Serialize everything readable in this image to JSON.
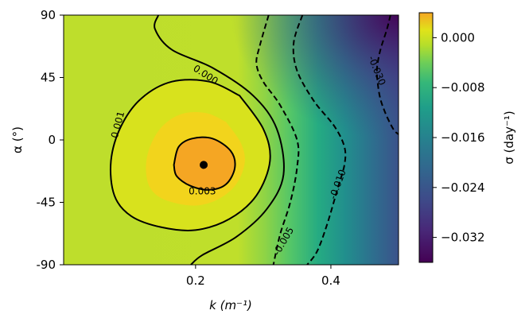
{
  "chart_data": {
    "type": "heatmap",
    "subtype": "filled-contour",
    "xlabel": "k (m⁻¹)",
    "ylabel": "α (°)",
    "x_ticks": [
      {
        "value": 0.2,
        "label": "0.2"
      },
      {
        "value": 0.4,
        "label": "0.4"
      }
    ],
    "y_ticks": [
      {
        "value": 90,
        "label": "90"
      },
      {
        "value": 45,
        "label": "45"
      },
      {
        "value": 0,
        "label": "0"
      },
      {
        "value": -45,
        "label": "-45"
      },
      {
        "value": -90,
        "label": "-90"
      }
    ],
    "xlim": [
      0.005,
      0.5
    ],
    "ylim": [
      -90,
      90
    ],
    "grid": false,
    "colormap": "viridis",
    "colorbar": {
      "label": "σ (day⁻¹)",
      "range": [
        -0.036,
        0.004
      ],
      "ticks": [
        {
          "value": 0.0,
          "label": "0.000"
        },
        {
          "value": -0.008,
          "label": "−0.008"
        },
        {
          "value": -0.016,
          "label": "−0.016"
        },
        {
          "value": -0.024,
          "label": "−0.024"
        },
        {
          "value": -0.032,
          "label": "−0.032"
        }
      ]
    },
    "maximum_point": {
      "x": 0.212,
      "y": -18
    },
    "contours": [
      {
        "level": 0.003,
        "label": "0.003",
        "style": "solid",
        "label_at": [
          0.21,
          -37
        ],
        "points": [
          [
            0.168,
            -18
          ],
          [
            0.175,
            -5
          ],
          [
            0.195,
            1
          ],
          [
            0.225,
            1
          ],
          [
            0.252,
            -8
          ],
          [
            0.258,
            -20
          ],
          [
            0.245,
            -32
          ],
          [
            0.22,
            -36
          ],
          [
            0.192,
            -33
          ],
          [
            0.172,
            -26
          ],
          [
            0.168,
            -18
          ]
        ]
      },
      {
        "level": 0.001,
        "label": "0.001",
        "style": "solid",
        "label_at": [
          0.085,
          11
        ],
        "points": [
          [
            0.265,
            32
          ],
          [
            0.22,
            42
          ],
          [
            0.165,
            42
          ],
          [
            0.12,
            30
          ],
          [
            0.09,
            10
          ],
          [
            0.075,
            -15
          ],
          [
            0.08,
            -40
          ],
          [
            0.105,
            -55
          ],
          [
            0.15,
            -63
          ],
          [
            0.2,
            -65
          ],
          [
            0.25,
            -57
          ],
          [
            0.29,
            -40
          ],
          [
            0.31,
            -15
          ],
          [
            0.3,
            8
          ],
          [
            0.265,
            32
          ]
        ]
      },
      {
        "level": 0.0,
        "label": "0.000",
        "style": "solid",
        "label_at": [
          0.215,
          47
        ],
        "points": [
          [
            0.145,
            90
          ],
          [
            0.14,
            80
          ],
          [
            0.165,
            65
          ],
          [
            0.225,
            52
          ],
          [
            0.285,
            32
          ],
          [
            0.32,
            8
          ],
          [
            0.33,
            -25
          ],
          [
            0.305,
            -50
          ],
          [
            0.26,
            -70
          ],
          [
            0.21,
            -83
          ],
          [
            0.193,
            -90
          ]
        ]
      },
      {
        "level": -0.005,
        "label": "-0.005",
        "style": "dashed",
        "label_at": [
          0.33,
          -73
        ],
        "points": [
          [
            0.308,
            90
          ],
          [
            0.295,
            68
          ],
          [
            0.29,
            55
          ],
          [
            0.3,
            42
          ],
          [
            0.325,
            25
          ],
          [
            0.35,
            0
          ],
          [
            0.35,
            -20
          ],
          [
            0.34,
            -45
          ],
          [
            0.325,
            -68
          ],
          [
            0.315,
            -90
          ]
        ]
      },
      {
        "level": -0.01,
        "label": "-0.010",
        "style": "dashed",
        "label_at": [
          0.41,
          -32
        ],
        "points": [
          [
            0.358,
            90
          ],
          [
            0.345,
            70
          ],
          [
            0.35,
            50
          ],
          [
            0.375,
            28
          ],
          [
            0.405,
            10
          ],
          [
            0.42,
            -5
          ],
          [
            0.42,
            -18
          ],
          [
            0.41,
            -35
          ],
          [
            0.395,
            -60
          ],
          [
            0.38,
            -80
          ],
          [
            0.365,
            -90
          ]
        ]
      },
      {
        "level": -0.03,
        "label": "-0.030",
        "style": "dashed",
        "label_at": [
          0.468,
          50
        ],
        "points": [
          [
            0.488,
            90
          ],
          [
            0.483,
            80
          ],
          [
            0.475,
            68
          ],
          [
            0.47,
            58
          ],
          [
            0.468,
            48
          ],
          [
            0.472,
            32
          ],
          [
            0.48,
            20
          ],
          [
            0.492,
            8
          ],
          [
            0.5,
            4
          ]
        ]
      }
    ]
  }
}
